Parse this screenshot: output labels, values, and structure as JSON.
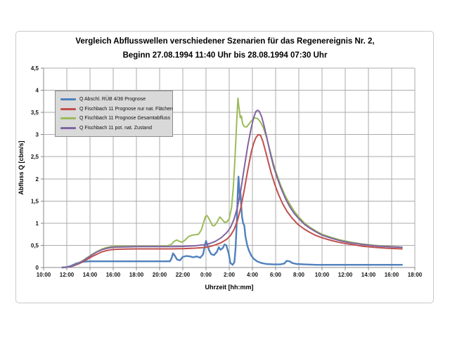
{
  "chart_data": {
    "type": "line",
    "title_line1": "Vergleich Abflusswellen verschiedener Szenarien für das Regenereignis Nr. 2,",
    "title_line2": "Beginn 27.08.1994 11:40 Uhr bis 28.08.1994 07:30 Uhr",
    "xlabel": "Uhrzeit [hh:mm]",
    "ylabel": "Abfluss Q [cbm/s]",
    "grid": true,
    "legend_position": "upper-left-inside",
    "x_range_hours": [
      0,
      32
    ],
    "x_tick_hours": [
      0,
      2,
      4,
      6,
      8,
      10,
      12,
      14,
      16,
      18,
      20,
      22,
      24,
      26,
      28,
      30,
      32
    ],
    "x_tick_labels": [
      "10:00",
      "12:00",
      "14:00",
      "16:00",
      "18:00",
      "20:00",
      "22:00",
      "0:00",
      "2:00",
      "4:00",
      "6:00",
      "8:00",
      "10:00",
      "12:00",
      "14:00",
      "16:00",
      "18:00"
    ],
    "ylim": [
      0,
      4.5
    ],
    "y_tick_step": 0.5,
    "y_tick_labels": [
      "0",
      "0,5",
      "1",
      "1,5",
      "2",
      "2,5",
      "3",
      "3,5",
      "4",
      "4,5"
    ],
    "colors": {
      "gridline": "#ababab",
      "axis": "#8a8a8a",
      "legend_fill": "#d9d9d9",
      "legend_border": "#8c8c8c",
      "frame_border": "#c9c9c9"
    },
    "series": [
      {
        "name": "Q Abschl. RÜB 4/36 Prognose",
        "color": "#4F81BD",
        "stroke_width": 2.4,
        "points": [
          [
            1.6,
            0
          ],
          [
            2.0,
            0.01
          ],
          [
            2.4,
            0.04
          ],
          [
            2.8,
            0.09
          ],
          [
            3.2,
            0.12
          ],
          [
            3.6,
            0.135
          ],
          [
            4.0,
            0.14
          ],
          [
            5,
            0.14
          ],
          [
            6,
            0.14
          ],
          [
            7,
            0.14
          ],
          [
            8,
            0.14
          ],
          [
            9,
            0.14
          ],
          [
            10,
            0.14
          ],
          [
            10.9,
            0.14
          ],
          [
            11.05,
            0.22
          ],
          [
            11.15,
            0.32
          ],
          [
            11.3,
            0.27
          ],
          [
            11.5,
            0.18
          ],
          [
            11.75,
            0.16
          ],
          [
            12.0,
            0.24
          ],
          [
            12.3,
            0.26
          ],
          [
            12.6,
            0.25
          ],
          [
            12.9,
            0.23
          ],
          [
            13.2,
            0.25
          ],
          [
            13.5,
            0.22
          ],
          [
            13.75,
            0.3
          ],
          [
            13.9,
            0.5
          ],
          [
            14.0,
            0.6
          ],
          [
            14.1,
            0.52
          ],
          [
            14.25,
            0.4
          ],
          [
            14.45,
            0.3
          ],
          [
            14.7,
            0.28
          ],
          [
            14.95,
            0.36
          ],
          [
            15.1,
            0.46
          ],
          [
            15.25,
            0.4
          ],
          [
            15.45,
            0.44
          ],
          [
            15.6,
            0.52
          ],
          [
            15.75,
            0.5
          ],
          [
            15.95,
            0.32
          ],
          [
            16.1,
            0.1
          ],
          [
            16.3,
            0.06
          ],
          [
            16.45,
            0.12
          ],
          [
            16.55,
            0.45
          ],
          [
            16.65,
            1.0
          ],
          [
            16.72,
            1.6
          ],
          [
            16.8,
            2.05
          ],
          [
            16.87,
            1.75
          ],
          [
            16.92,
            1.55
          ],
          [
            16.97,
            1.7
          ],
          [
            17.02,
            1.45
          ],
          [
            17.1,
            1.15
          ],
          [
            17.2,
            1.0
          ],
          [
            17.3,
            0.95
          ],
          [
            17.4,
            0.7
          ],
          [
            17.55,
            0.5
          ],
          [
            17.7,
            0.38
          ],
          [
            17.9,
            0.27
          ],
          [
            18.1,
            0.2
          ],
          [
            18.4,
            0.14
          ],
          [
            18.8,
            0.1
          ],
          [
            19.2,
            0.08
          ],
          [
            19.8,
            0.07
          ],
          [
            20.4,
            0.07
          ],
          [
            20.75,
            0.09
          ],
          [
            20.95,
            0.15
          ],
          [
            21.2,
            0.14
          ],
          [
            21.45,
            0.1
          ],
          [
            21.8,
            0.08
          ],
          [
            22.5,
            0.07
          ],
          [
            23.5,
            0.06
          ],
          [
            25,
            0.06
          ],
          [
            27,
            0.06
          ],
          [
            29,
            0.06
          ],
          [
            30.9,
            0.06
          ]
        ]
      },
      {
        "name": "Q Fischbach 11 Prognose nur nat. Flächen",
        "color": "#C0504D",
        "stroke_width": 2,
        "points": [
          [
            1.6,
            0
          ],
          [
            2.2,
            0.01
          ],
          [
            2.6,
            0.04
          ],
          [
            3.0,
            0.08
          ],
          [
            3.4,
            0.13
          ],
          [
            3.8,
            0.19
          ],
          [
            4.2,
            0.25
          ],
          [
            4.6,
            0.3
          ],
          [
            5.0,
            0.35
          ],
          [
            5.4,
            0.38
          ],
          [
            5.8,
            0.4
          ],
          [
            6.2,
            0.41
          ],
          [
            7,
            0.415
          ],
          [
            8,
            0.42
          ],
          [
            9,
            0.42
          ],
          [
            10,
            0.42
          ],
          [
            11,
            0.42
          ],
          [
            12,
            0.425
          ],
          [
            13,
            0.435
          ],
          [
            13.8,
            0.45
          ],
          [
            14.3,
            0.47
          ],
          [
            14.8,
            0.51
          ],
          [
            15.3,
            0.56
          ],
          [
            15.8,
            0.64
          ],
          [
            16.1,
            0.72
          ],
          [
            16.4,
            0.85
          ],
          [
            16.7,
            1.05
          ],
          [
            17.0,
            1.35
          ],
          [
            17.3,
            1.75
          ],
          [
            17.6,
            2.2
          ],
          [
            17.9,
            2.6
          ],
          [
            18.1,
            2.8
          ],
          [
            18.3,
            2.93
          ],
          [
            18.5,
            3.0
          ],
          [
            18.7,
            2.98
          ],
          [
            18.9,
            2.85
          ],
          [
            19.1,
            2.65
          ],
          [
            19.35,
            2.4
          ],
          [
            19.6,
            2.15
          ],
          [
            19.9,
            1.9
          ],
          [
            20.2,
            1.68
          ],
          [
            20.6,
            1.44
          ],
          [
            21.0,
            1.26
          ],
          [
            21.4,
            1.12
          ],
          [
            21.9,
            0.98
          ],
          [
            22.4,
            0.88
          ],
          [
            22.9,
            0.8
          ],
          [
            23.4,
            0.73
          ],
          [
            24,
            0.67
          ],
          [
            24.8,
            0.61
          ],
          [
            25.6,
            0.56
          ],
          [
            26.5,
            0.52
          ],
          [
            27.5,
            0.48
          ],
          [
            28.5,
            0.455
          ],
          [
            29.5,
            0.435
          ],
          [
            30.9,
            0.42
          ]
        ]
      },
      {
        "name": "Q Fischbach 11 Prognose Gesamtabfluss",
        "color": "#9BBB59",
        "stroke_width": 2,
        "points": [
          [
            1.6,
            0
          ],
          [
            2.2,
            0.01
          ],
          [
            2.6,
            0.05
          ],
          [
            3.0,
            0.1
          ],
          [
            3.4,
            0.16
          ],
          [
            3.8,
            0.23
          ],
          [
            4.2,
            0.3
          ],
          [
            4.6,
            0.36
          ],
          [
            5.0,
            0.41
          ],
          [
            5.4,
            0.45
          ],
          [
            5.8,
            0.47
          ],
          [
            6.2,
            0.48
          ],
          [
            7,
            0.48
          ],
          [
            8,
            0.48
          ],
          [
            9,
            0.48
          ],
          [
            10,
            0.48
          ],
          [
            10.7,
            0.49
          ],
          [
            11.0,
            0.52
          ],
          [
            11.3,
            0.6
          ],
          [
            11.5,
            0.62
          ],
          [
            11.7,
            0.59
          ],
          [
            11.95,
            0.57
          ],
          [
            12.2,
            0.62
          ],
          [
            12.5,
            0.7
          ],
          [
            12.8,
            0.73
          ],
          [
            13.1,
            0.74
          ],
          [
            13.35,
            0.75
          ],
          [
            13.6,
            0.85
          ],
          [
            13.8,
            1.02
          ],
          [
            13.95,
            1.15
          ],
          [
            14.1,
            1.17
          ],
          [
            14.3,
            1.08
          ],
          [
            14.55,
            0.95
          ],
          [
            14.7,
            0.94
          ],
          [
            14.9,
            1.0
          ],
          [
            15.1,
            1.1
          ],
          [
            15.2,
            1.14
          ],
          [
            15.4,
            1.08
          ],
          [
            15.6,
            1.02
          ],
          [
            15.8,
            1.03
          ],
          [
            16.0,
            1.1
          ],
          [
            16.2,
            1.35
          ],
          [
            16.35,
            1.8
          ],
          [
            16.5,
            2.5
          ],
          [
            16.65,
            3.3
          ],
          [
            16.75,
            3.82
          ],
          [
            16.82,
            3.65
          ],
          [
            16.88,
            3.55
          ],
          [
            16.95,
            3.38
          ],
          [
            17.05,
            3.42
          ],
          [
            17.15,
            3.25
          ],
          [
            17.3,
            3.18
          ],
          [
            17.5,
            3.17
          ],
          [
            17.7,
            3.24
          ],
          [
            17.95,
            3.32
          ],
          [
            18.2,
            3.38
          ],
          [
            18.45,
            3.36
          ],
          [
            18.7,
            3.28
          ],
          [
            18.95,
            3.15
          ],
          [
            19.2,
            2.95
          ],
          [
            19.5,
            2.65
          ],
          [
            19.8,
            2.35
          ],
          [
            20.1,
            2.1
          ],
          [
            20.4,
            1.88
          ],
          [
            20.8,
            1.63
          ],
          [
            21.2,
            1.44
          ],
          [
            21.6,
            1.27
          ],
          [
            22.0,
            1.14
          ],
          [
            22.5,
            1.0
          ],
          [
            23.0,
            0.9
          ],
          [
            23.5,
            0.82
          ],
          [
            24,
            0.75
          ],
          [
            24.8,
            0.68
          ],
          [
            25.6,
            0.62
          ],
          [
            26.5,
            0.57
          ],
          [
            27.5,
            0.53
          ],
          [
            28.5,
            0.5
          ],
          [
            29.5,
            0.48
          ],
          [
            30.9,
            0.46
          ]
        ]
      },
      {
        "name": "Q Fischbach 11 pot. nat. Zustand",
        "color": "#8064A2",
        "stroke_width": 2,
        "points": [
          [
            1.6,
            0
          ],
          [
            2.2,
            0.01
          ],
          [
            2.6,
            0.05
          ],
          [
            3.0,
            0.09
          ],
          [
            3.4,
            0.15
          ],
          [
            3.8,
            0.22
          ],
          [
            4.2,
            0.29
          ],
          [
            4.6,
            0.35
          ],
          [
            5.0,
            0.4
          ],
          [
            5.4,
            0.43
          ],
          [
            5.8,
            0.45
          ],
          [
            6.2,
            0.46
          ],
          [
            7,
            0.465
          ],
          [
            8,
            0.47
          ],
          [
            9,
            0.47
          ],
          [
            10,
            0.47
          ],
          [
            11,
            0.47
          ],
          [
            12,
            0.475
          ],
          [
            13,
            0.49
          ],
          [
            13.8,
            0.51
          ],
          [
            14.3,
            0.54
          ],
          [
            14.8,
            0.59
          ],
          [
            15.3,
            0.67
          ],
          [
            15.8,
            0.79
          ],
          [
            16.1,
            0.9
          ],
          [
            16.4,
            1.08
          ],
          [
            16.7,
            1.35
          ],
          [
            17.0,
            1.75
          ],
          [
            17.3,
            2.25
          ],
          [
            17.6,
            2.75
          ],
          [
            17.9,
            3.15
          ],
          [
            18.1,
            3.38
          ],
          [
            18.3,
            3.52
          ],
          [
            18.45,
            3.55
          ],
          [
            18.6,
            3.52
          ],
          [
            18.8,
            3.4
          ],
          [
            19.0,
            3.2
          ],
          [
            19.25,
            2.92
          ],
          [
            19.5,
            2.62
          ],
          [
            19.8,
            2.3
          ],
          [
            20.1,
            2.05
          ],
          [
            20.45,
            1.8
          ],
          [
            20.8,
            1.58
          ],
          [
            21.2,
            1.38
          ],
          [
            21.6,
            1.22
          ],
          [
            22.0,
            1.1
          ],
          [
            22.5,
            0.97
          ],
          [
            23.0,
            0.88
          ],
          [
            23.5,
            0.8
          ],
          [
            24,
            0.73
          ],
          [
            24.8,
            0.66
          ],
          [
            25.6,
            0.6
          ],
          [
            26.5,
            0.555
          ],
          [
            27.5,
            0.52
          ],
          [
            28.5,
            0.49
          ],
          [
            29.5,
            0.47
          ],
          [
            30.9,
            0.455
          ]
        ]
      }
    ]
  }
}
